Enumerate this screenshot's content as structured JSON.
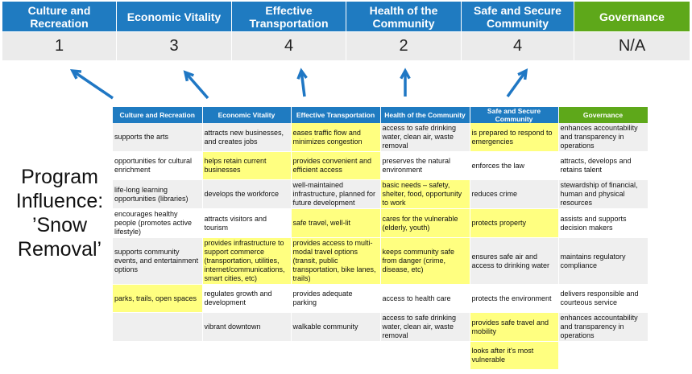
{
  "colors": {
    "blue": "#1f7bc1",
    "green": "#5ea81a",
    "highlight": "#ffff80",
    "arrow": "#1f77c4"
  },
  "top": [
    {
      "label": "Culture and Recreation",
      "score": "1"
    },
    {
      "label": "Economic Vitality",
      "score": "3"
    },
    {
      "label": "Effective Transportation",
      "score": "4"
    },
    {
      "label": "Health of the Community",
      "score": "2"
    },
    {
      "label": "Safe and Secure Community",
      "score": "4"
    },
    {
      "label": "Governance",
      "score": "N/A"
    }
  ],
  "left_label": "Program Influence: ’Snow Removal’",
  "table": {
    "headers": [
      "Culture and Recreation",
      "Economic Vitality",
      "Effective Transportation",
      "Health of the Community",
      "Safe and Secure Community",
      "Governance"
    ],
    "rows": [
      [
        {
          "t": "supports the arts"
        },
        {
          "t": "attracts new businesses, and creates jobs"
        },
        {
          "t": "eases traffic flow and minimizes congestion",
          "h": true
        },
        {
          "t": "access to safe drinking water, clean air, waste removal"
        },
        {
          "t": "is prepared to respond to emergencies",
          "h": true
        },
        {
          "t": "enhances accountability and transparency in operations"
        }
      ],
      [
        {
          "t": "opportunities for cultural enrichment"
        },
        {
          "t": "helps retain current businesses",
          "h": true
        },
        {
          "t": "provides convenient and efficient access",
          "h": true
        },
        {
          "t": "preserves the natural environment"
        },
        {
          "t": "enforces the law"
        },
        {
          "t": "attracts, develops and retains talent"
        }
      ],
      [
        {
          "t": "life-long learning opportunities (libraries)"
        },
        {
          "t": "develops the workforce"
        },
        {
          "t": "well-maintained infrastructure, planned for future development"
        },
        {
          "t": "basic needs – safety, shelter, food, opportunity to work",
          "h": true
        },
        {
          "t": "reduces crime"
        },
        {
          "t": "stewardship of financial, human and physical resources"
        }
      ],
      [
        {
          "t": "encourages healthy people (promotes active lifestyle)"
        },
        {
          "t": "attracts visitors and tourism"
        },
        {
          "t": "safe travel, well-lit",
          "h": true
        },
        {
          "t": "cares for the vulnerable (elderly, youth)",
          "h": true
        },
        {
          "t": "protects property",
          "h": true
        },
        {
          "t": "assists and supports decision makers"
        }
      ],
      [
        {
          "t": "supports community events, and entertainment options"
        },
        {
          "t": "provides infrastructure to support commerce (transportation, utilities, internet/communications, smart cities, etc)",
          "h": true
        },
        {
          "t": "provides access to multi-modal travel options (transit, public transportation, bike lanes, trails)",
          "h": true
        },
        {
          "t": "keeps community safe from danger (crime, disease, etc)",
          "h": true
        },
        {
          "t": "ensures safe air and access to drinking water"
        },
        {
          "t": "maintains regulatory compliance"
        }
      ],
      [
        {
          "t": "parks, trails, open spaces",
          "h": true
        },
        {
          "t": "regulates growth and development"
        },
        {
          "t": "provides adequate parking"
        },
        {
          "t": "access to health care"
        },
        {
          "t": "protects the environment"
        },
        {
          "t": "delivers responsible and courteous service"
        }
      ],
      [
        {
          "t": ""
        },
        {
          "t": "vibrant downtown"
        },
        {
          "t": "walkable community"
        },
        {
          "t": "access to safe drinking water, clean air, waste removal"
        },
        {
          "t": "provides safe travel and mobility",
          "h": true
        },
        {
          "t": "enhances accountability and transparency in operations"
        }
      ],
      [
        {
          "t": ""
        },
        {
          "t": ""
        },
        {
          "t": ""
        },
        {
          "t": ""
        },
        {
          "t": "looks after it's most vulnerable",
          "h": true
        },
        {
          "t": ""
        }
      ]
    ]
  }
}
